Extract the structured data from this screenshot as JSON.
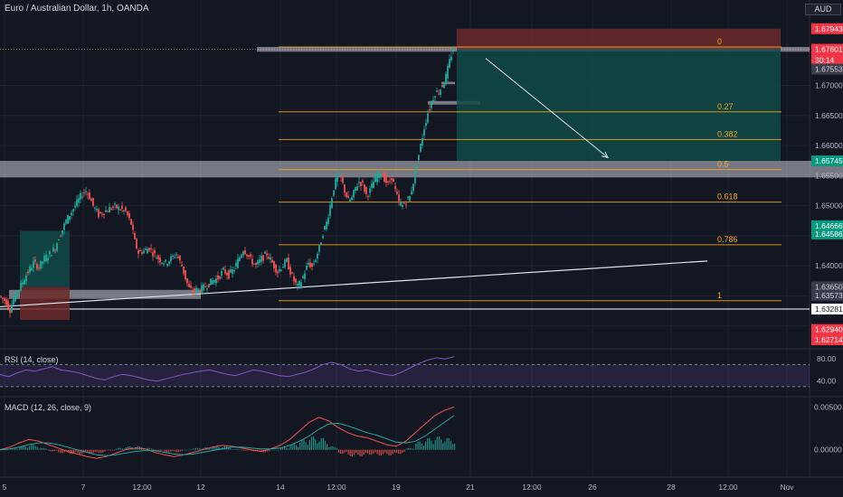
{
  "header": {
    "symbol_title": "Euro / Australian Dollar, 1h, OANDA",
    "currency": "AUD"
  },
  "colors": {
    "background": "#131722",
    "grid": "#1f2330",
    "candle_up": "#26a69a",
    "candle_down": "#ef5350",
    "fib_line": "#f5a623",
    "fib_label": "#f5a623",
    "target_zone": "#0f4a47",
    "stop_zone": "#6b2a2a",
    "rsi_line": "#7e57c2",
    "macd_line": "#2962ff",
    "signal_line": "#ff6d00",
    "trendline": "#e0e3eb",
    "zone": "#c8cbd4"
  },
  "chart_data": {
    "type": "candlestick",
    "instrument": "EUR/AUD",
    "timeframe": "1h",
    "broker": "OANDA",
    "x_tick_labels": [
      "5",
      "7",
      "12:00",
      "12",
      "14",
      "12:00",
      "19",
      "21",
      "12:00",
      "26",
      "28",
      "12:00",
      "Nov"
    ],
    "price_axis_labels": [
      "1.67000",
      "1.66500",
      "1.66000",
      "1.65500",
      "1.65000",
      "1.64000"
    ],
    "ylim": [
      1.6265,
      1.6815
    ],
    "price_markers": [
      {
        "value": "1.67943",
        "price": 1.67943,
        "kind": "stop"
      },
      {
        "value": "1.67601",
        "price": 1.67601,
        "kind": "last"
      },
      {
        "value": "30:14",
        "price": 1.6742,
        "kind": "countdown"
      },
      {
        "value": "1.67553",
        "price": 1.6727,
        "kind": "level"
      },
      {
        "value": "1.65745",
        "price": 1.65745,
        "kind": "target"
      },
      {
        "value": "1.64666",
        "price": 1.64666,
        "kind": "up"
      },
      {
        "value": "1.64586",
        "price": 1.6453,
        "kind": "up"
      },
      {
        "value": "1.63650",
        "price": 1.6365,
        "kind": "level"
      },
      {
        "value": "1.63573",
        "price": 1.6351,
        "kind": "level"
      },
      {
        "value": "1.63281",
        "price": 1.63281,
        "kind": "white"
      },
      {
        "value": "1.62940",
        "price": 1.6294,
        "kind": "down"
      },
      {
        "value": "1.62714",
        "price": 1.6277,
        "kind": "down"
      }
    ],
    "fib_levels": [
      {
        "label": "0",
        "price": 1.6764
      },
      {
        "label": "0.27",
        "price": 1.6656
      },
      {
        "label": "0.382",
        "price": 1.661
      },
      {
        "label": "0.5",
        "price": 1.656
      },
      {
        "label": "0.618",
        "price": 1.6506
      },
      {
        "label": "0.786",
        "price": 1.6435
      },
      {
        "label": "1",
        "price": 1.6342
      }
    ],
    "path_points": [
      [
        0,
        1.635
      ],
      [
        8,
        1.634
      ],
      [
        12,
        1.6327
      ],
      [
        16,
        1.6345
      ],
      [
        22,
        1.6362
      ],
      [
        30,
        1.6385
      ],
      [
        38,
        1.6405
      ],
      [
        44,
        1.6398
      ],
      [
        50,
        1.6412
      ],
      [
        56,
        1.642
      ],
      [
        62,
        1.643
      ],
      [
        66,
        1.6448
      ],
      [
        70,
        1.646
      ],
      [
        74,
        1.6475
      ],
      [
        80,
        1.649
      ],
      [
        86,
        1.6505
      ],
      [
        92,
        1.652
      ],
      [
        96,
        1.6525
      ],
      [
        100,
        1.6515
      ],
      [
        104,
        1.65
      ],
      [
        110,
        1.6485
      ],
      [
        116,
        1.649
      ],
      [
        122,
        1.6495
      ],
      [
        128,
        1.6498
      ],
      [
        134,
        1.6495
      ],
      [
        140,
        1.649
      ],
      [
        146,
        1.647
      ],
      [
        150,
        1.644
      ],
      [
        154,
        1.6422
      ],
      [
        160,
        1.6425
      ],
      [
        166,
        1.643
      ],
      [
        172,
        1.6418
      ],
      [
        178,
        1.641
      ],
      [
        184,
        1.6405
      ],
      [
        190,
        1.6412
      ],
      [
        196,
        1.642
      ],
      [
        202,
        1.64
      ],
      [
        206,
        1.638
      ],
      [
        210,
        1.6362
      ],
      [
        214,
        1.6358
      ],
      [
        218,
        1.636
      ],
      [
        224,
        1.6362
      ],
      [
        230,
        1.6368
      ],
      [
        236,
        1.6375
      ],
      [
        242,
        1.638
      ],
      [
        248,
        1.6392
      ],
      [
        254,
        1.6385
      ],
      [
        260,
        1.6395
      ],
      [
        266,
        1.6415
      ],
      [
        270,
        1.6428
      ],
      [
        274,
        1.642
      ],
      [
        278,
        1.641
      ],
      [
        284,
        1.64
      ],
      [
        290,
        1.6412
      ],
      [
        296,
        1.642
      ],
      [
        302,
        1.6405
      ],
      [
        308,
        1.639
      ],
      [
        312,
        1.6398
      ],
      [
        318,
        1.6408
      ],
      [
        322,
        1.639
      ],
      [
        326,
        1.6375
      ],
      [
        330,
        1.6365
      ],
      [
        334,
        1.6375
      ],
      [
        338,
        1.639
      ],
      [
        342,
        1.6405
      ],
      [
        346,
        1.6398
      ],
      [
        350,
        1.6412
      ],
      [
        354,
        1.643
      ],
      [
        358,
        1.6455
      ],
      [
        362,
        1.6472
      ],
      [
        366,
        1.65
      ],
      [
        370,
        1.653
      ],
      [
        374,
        1.655
      ],
      [
        378,
        1.6545
      ],
      [
        382,
        1.6525
      ],
      [
        386,
        1.6508
      ],
      [
        390,
        1.6512
      ],
      [
        394,
        1.653
      ],
      [
        398,
        1.654
      ],
      [
        402,
        1.6535
      ],
      [
        406,
        1.6518
      ],
      [
        410,
        1.6525
      ],
      [
        414,
        1.654
      ],
      [
        418,
        1.655
      ],
      [
        422,
        1.6555
      ],
      [
        426,
        1.6545
      ],
      [
        430,
        1.6535
      ],
      [
        434,
        1.6548
      ],
      [
        438,
        1.6525
      ],
      [
        442,
        1.6505
      ],
      [
        446,
        1.65
      ],
      [
        450,
        1.6508
      ],
      [
        454,
        1.6515
      ],
      [
        458,
        1.654
      ],
      [
        462,
        1.657
      ],
      [
        466,
        1.66
      ],
      [
        470,
        1.663
      ],
      [
        474,
        1.6655
      ],
      [
        478,
        1.6672
      ],
      [
        482,
        1.6688
      ],
      [
        486,
        1.669
      ],
      [
        490,
        1.67
      ],
      [
        494,
        1.6715
      ],
      [
        498,
        1.674
      ],
      [
        502,
        1.6762
      ]
    ],
    "trendlines": [
      {
        "x1": 0,
        "p1": 1.6332,
        "x2": 782,
        "p2": 1.6408
      }
    ],
    "zones": [
      {
        "x1": 0,
        "x2": 932,
        "p1": 1.65745,
        "p2": 1.6547
      },
      {
        "x1": 10,
        "x2": 222,
        "p1": 1.636,
        "p2": 1.6345
      },
      {
        "x1": 284,
        "x2": 895,
        "p1": 1.6764,
        "p2": 1.6756
      },
      {
        "x1": 473,
        "x2": 531,
        "p1": 1.6674,
        "p2": 1.6668
      },
      {
        "x1": 488,
        "x2": 503,
        "p1": 1.6706,
        "p2": 1.6702
      }
    ],
    "positions": [
      {
        "x1": 505,
        "x2": 863,
        "entry": 1.67601,
        "stop": 1.67943,
        "target": 1.65745
      },
      {
        "x1": 22,
        "x2": 77,
        "entry": 1.6365,
        "stop": 1.631,
        "target": 1.6458
      }
    ],
    "projection_arrow": {
      "x1": 537,
      "p1": 1.6745,
      "x2": 672,
      "p2": 1.658
    },
    "rsi": {
      "label": "RSI (14, close)",
      "upper_band": 70,
      "lower_band": 30,
      "scale_labels": [
        "80.00",
        "40.00"
      ],
      "ylim": [
        15,
        95
      ],
      "values": [
        52,
        48,
        55,
        60,
        58,
        62,
        66,
        60,
        58,
        55,
        50,
        45,
        42,
        48,
        52,
        50,
        46,
        42,
        40,
        44,
        48,
        52,
        55,
        58,
        60,
        56,
        52,
        50,
        55,
        60,
        58,
        54,
        50,
        48,
        52,
        56,
        62,
        70,
        74,
        70,
        62,
        58,
        60,
        56,
        52,
        50,
        56,
        64,
        72,
        78,
        82,
        80,
        84
      ]
    },
    "macd": {
      "label": "MACD (12, 26, close, 9)",
      "scale_labels": [
        "0.00500",
        "0.00000"
      ],
      "ylim": [
        -0.003,
        0.006
      ],
      "macd_values": [
        0.0,
        0.0003,
        0.0008,
        0.0012,
        0.001,
        0.0006,
        0.0002,
        -0.0002,
        -0.0005,
        -0.0008,
        -0.001,
        -0.0008,
        -0.0004,
        0.0,
        0.0002,
        0.0001,
        -0.0003,
        -0.0006,
        -0.0008,
        -0.0006,
        -0.0003,
        0.0,
        0.0003,
        0.0005,
        0.0004,
        0.0002,
        0.0,
        -0.0002,
        0.0001,
        0.0005,
        0.0012,
        0.0022,
        0.0032,
        0.0038,
        0.0034,
        0.0026,
        0.002,
        0.0016,
        0.0014,
        0.001,
        0.0006,
        0.0004,
        0.001,
        0.002,
        0.003,
        0.004,
        0.0046,
        0.005
      ],
      "signal_values": [
        0.0,
        0.0001,
        0.0003,
        0.0006,
        0.0008,
        0.0008,
        0.0006,
        0.0003,
        0.0,
        -0.0003,
        -0.0006,
        -0.0007,
        -0.0006,
        -0.0004,
        -0.0002,
        -0.0001,
        -0.0001,
        -0.0003,
        -0.0005,
        -0.0006,
        -0.0005,
        -0.0003,
        -0.0001,
        0.0001,
        0.0003,
        0.0003,
        0.0002,
        0.0001,
        0.0001,
        0.0002,
        0.0005,
        0.001,
        0.0016,
        0.0024,
        0.003,
        0.0031,
        0.0028,
        0.0024,
        0.002,
        0.0017,
        0.0013,
        0.0009,
        0.0008,
        0.001,
        0.0016,
        0.0024,
        0.0032,
        0.004
      ]
    }
  }
}
